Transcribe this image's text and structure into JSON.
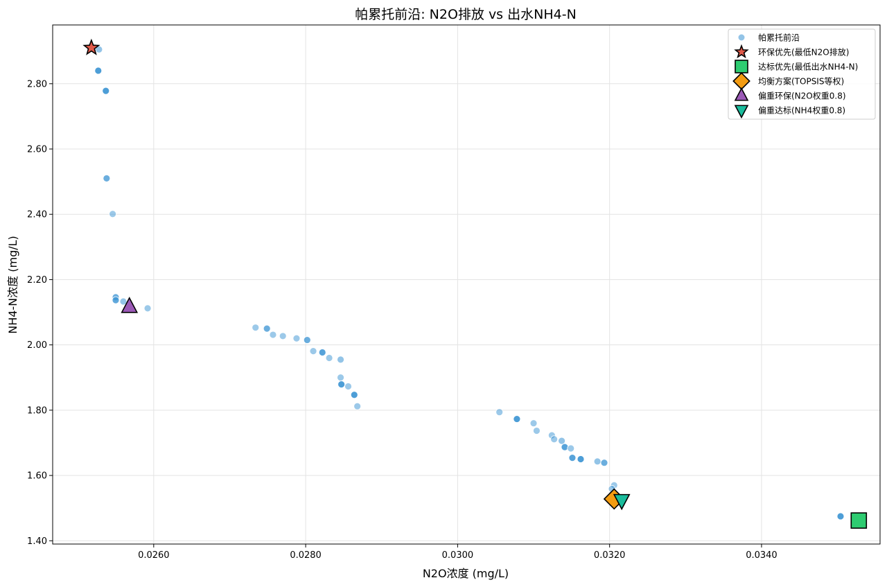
{
  "chart_data": {
    "type": "scatter",
    "title": "帕累托前沿: N2O排放 vs 出水NH4-N",
    "xlabel": "N2O浓度 (mg/L)",
    "ylabel": "NH4-N浓度 (mg/L)",
    "xlim": [
      0.02467,
      0.03556
    ],
    "ylim": [
      1.39,
      2.98
    ],
    "xticks": [
      "0.0260",
      "0.0280",
      "0.0300",
      "0.0320",
      "0.0340"
    ],
    "xtick_values": [
      0.026,
      0.028,
      0.03,
      0.032,
      0.034
    ],
    "yticks": [
      "1.40",
      "1.60",
      "1.80",
      "2.00",
      "2.20",
      "2.40",
      "2.60",
      "2.80"
    ],
    "ytick_values": [
      1.4,
      1.6,
      1.8,
      2.0,
      2.2,
      2.4,
      2.6,
      2.8
    ],
    "grid": true,
    "legend_position": "top-right",
    "pareto": {
      "name": "帕累托前沿",
      "color": "#3a93d3",
      "points": [
        [
          0.02528,
          2.905,
          0.55
        ],
        [
          0.02527,
          2.84,
          0.9
        ],
        [
          0.02537,
          2.778,
          0.9
        ],
        [
          0.02538,
          2.51,
          0.75
        ],
        [
          0.02546,
          2.401,
          0.5
        ],
        [
          0.0255,
          2.146,
          0.75
        ],
        [
          0.0255,
          2.137,
          0.8
        ],
        [
          0.0256,
          2.133,
          0.55
        ],
        [
          0.02592,
          2.112,
          0.5
        ],
        [
          0.02734,
          2.053,
          0.5
        ],
        [
          0.02749,
          2.05,
          0.75
        ],
        [
          0.02757,
          2.031,
          0.5
        ],
        [
          0.0277,
          2.027,
          0.5
        ],
        [
          0.02788,
          2.02,
          0.5
        ],
        [
          0.02802,
          2.015,
          0.75
        ],
        [
          0.0281,
          1.981,
          0.5
        ],
        [
          0.02822,
          1.977,
          0.85
        ],
        [
          0.02831,
          1.96,
          0.5
        ],
        [
          0.02846,
          1.955,
          0.55
        ],
        [
          0.02846,
          1.9,
          0.5
        ],
        [
          0.02847,
          1.879,
          0.9
        ],
        [
          0.02856,
          1.873,
          0.5
        ],
        [
          0.02864,
          1.847,
          0.9
        ],
        [
          0.02868,
          1.812,
          0.5
        ],
        [
          0.03055,
          1.794,
          0.5
        ],
        [
          0.03078,
          1.773,
          0.9
        ],
        [
          0.031,
          1.76,
          0.5
        ],
        [
          0.03104,
          1.737,
          0.5
        ],
        [
          0.03124,
          1.723,
          0.5
        ],
        [
          0.03127,
          1.711,
          0.5
        ],
        [
          0.03137,
          1.706,
          0.55
        ],
        [
          0.03141,
          1.687,
          0.85
        ],
        [
          0.03149,
          1.683,
          0.5
        ],
        [
          0.03151,
          1.654,
          0.85
        ],
        [
          0.03162,
          1.65,
          0.9
        ],
        [
          0.03184,
          1.643,
          0.55
        ],
        [
          0.03193,
          1.639,
          0.75
        ],
        [
          0.03206,
          1.57,
          0.5
        ],
        [
          0.03203,
          1.559,
          0.5
        ],
        [
          0.03504,
          1.475,
          0.9
        ]
      ]
    },
    "special_points": [
      {
        "name": "环保优先(最低N2O排放)",
        "marker": "star",
        "color": "#e05a4a",
        "x": 0.02518,
        "y": 2.91
      },
      {
        "name": "达标优先(最低出水NH4-N)",
        "marker": "square",
        "color": "#2ecc71",
        "x": 0.03528,
        "y": 1.462
      },
      {
        "name": "均衡方案(TOPSIS等权)",
        "marker": "diamond",
        "color": "#f39c12",
        "x": 0.03206,
        "y": 1.528
      },
      {
        "name": "偏重环保(N2O权重0.8)",
        "marker": "triangle-up",
        "color": "#9b59b6",
        "x": 0.02568,
        "y": 2.117
      },
      {
        "name": "偏重达标(NH4权重0.8)",
        "marker": "triangle-down",
        "color": "#1abc9c",
        "x": 0.03216,
        "y": 1.524
      }
    ]
  }
}
